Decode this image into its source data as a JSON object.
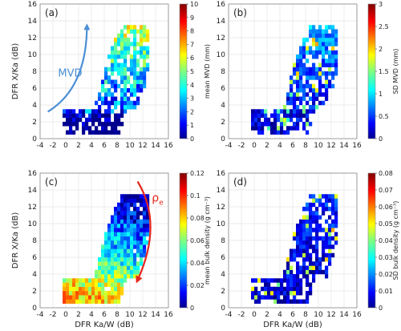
{
  "chart_data": [
    {
      "panel_label": "(a)",
      "type": "heatmap",
      "xlabel": "",
      "ylabel": "DFR X/Ka (dB)",
      "xlim": [
        -4,
        16
      ],
      "ylim": [
        0,
        16
      ],
      "xticks": [
        "-4",
        "-2",
        "0",
        "2",
        "4",
        "6",
        "8",
        "10",
        "12",
        "14",
        "16"
      ],
      "yticks": [
        "0",
        "2",
        "4",
        "6",
        "8",
        "10",
        "12",
        "14",
        "16"
      ],
      "grid": true,
      "colorbar": {
        "label": "mean MVD (mm)",
        "range": [
          0,
          10
        ],
        "ticks": [
          "0",
          "1",
          "2",
          "3",
          "4",
          "5",
          "6",
          "7",
          "8",
          "9",
          "10"
        ]
      },
      "annotation": {
        "text": "MVD",
        "color": "#4a8fd6",
        "arrow": "curved, pointing up-right"
      },
      "density": "light"
    },
    {
      "panel_label": "(b)",
      "type": "heatmap",
      "xlabel": "",
      "ylabel": "",
      "xlim": [
        -4,
        16
      ],
      "ylim": [
        0,
        16
      ],
      "xticks": [
        "-4",
        "-2",
        "0",
        "2",
        "4",
        "6",
        "8",
        "10",
        "12",
        "14",
        "16"
      ],
      "yticks": [
        "0",
        "2",
        "4",
        "6",
        "8",
        "10",
        "12",
        "14",
        "16"
      ],
      "grid": true,
      "colorbar": {
        "label": "SD MVD (mm)",
        "range": [
          0,
          3
        ],
        "ticks": [
          "0",
          "0.5",
          "1",
          "1.5",
          "2",
          "2.5",
          "3"
        ]
      },
      "density": "light"
    },
    {
      "panel_label": "(c)",
      "type": "heatmap",
      "xlabel": "DFR Ka/W (dB)",
      "ylabel": "DFR X/Ka (dB)",
      "xlim": [
        -4,
        16
      ],
      "ylim": [
        0,
        16
      ],
      "xticks": [
        "-4",
        "-2",
        "0",
        "2",
        "4",
        "6",
        "8",
        "10",
        "12",
        "14",
        "16"
      ],
      "yticks": [
        "0",
        "2",
        "4",
        "6",
        "8",
        "10",
        "12",
        "14",
        "16"
      ],
      "grid": true,
      "colorbar": {
        "label": "mean bulk density (g cm⁻³)",
        "range": [
          0,
          0.12
        ],
        "ticks": [
          "0",
          "0.02",
          "0.04",
          "0.06",
          "0.08",
          "0.1",
          "0.12"
        ]
      },
      "annotation": {
        "text": "ρ",
        "subscript": "e",
        "color": "#e8261c",
        "arrow": "curved, pointing down"
      },
      "density": "dense"
    },
    {
      "panel_label": "(d)",
      "type": "heatmap",
      "xlabel": "DFR Ka/W (dB)",
      "ylabel": "",
      "xlim": [
        -4,
        16
      ],
      "ylim": [
        0,
        16
      ],
      "xticks": [
        "-4",
        "-2",
        "0",
        "2",
        "4",
        "6",
        "8",
        "10",
        "12",
        "14",
        "16"
      ],
      "yticks": [
        "0",
        "2",
        "4",
        "6",
        "8",
        "10",
        "12",
        "14",
        "16"
      ],
      "grid": true,
      "colorbar": {
        "label": "SD bulk density (g cm⁻³)",
        "range": [
          0,
          0.08
        ],
        "ticks": [
          "0",
          "0.01",
          "0.02",
          "0.03",
          "0.04",
          "0.05",
          "0.06",
          "0.07",
          "0.08"
        ]
      },
      "density": "light"
    }
  ]
}
